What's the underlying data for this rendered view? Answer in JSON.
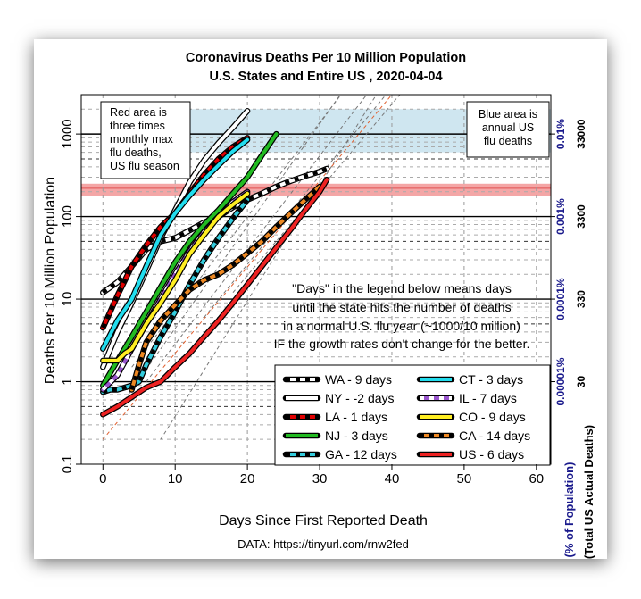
{
  "chart_data": {
    "type": "line",
    "title": "Coronavirus Deaths Per 10 Million Population",
    "subtitle": "U.S. States and Entire US , 2020-04-04",
    "xlabel": "Days Since First Reported Death",
    "ylabel": "Deaths Per 10 Million Population",
    "right_label_1": "(% of Population)",
    "right_label_2": "(Total US Actual Deaths)",
    "source": "DATA: https://tinyurl.com/rnw2fed",
    "y_scale": "log",
    "xlim": [
      -3,
      62
    ],
    "ylim": [
      0.1,
      3000
    ],
    "x_ticks": [
      0,
      10,
      20,
      30,
      40,
      50,
      60
    ],
    "x_tick_labels": [
      "0",
      "10",
      "20",
      "30",
      "40",
      "50",
      "60"
    ],
    "y_ticks": [
      0.1,
      1,
      10,
      100,
      1000
    ],
    "y_tick_labels": [
      "0.1",
      "1",
      "10",
      "100",
      "1000"
    ],
    "right_pct_labels": [
      {
        "y": 1000,
        "label": "0.01%"
      },
      {
        "y": 100,
        "label": "0.001%"
      },
      {
        "y": 10,
        "label": "0.0001%"
      },
      {
        "y": 1,
        "label": "0.00001%"
      }
    ],
    "right_actual_labels": [
      {
        "y": 1000,
        "label": "33000"
      },
      {
        "y": 100,
        "label": "3300"
      },
      {
        "y": 10,
        "label": "330"
      },
      {
        "y": 1,
        "label": "30"
      }
    ],
    "red_band": {
      "ymin": 180,
      "ymax": 250
    },
    "blue_band": {
      "ymin": 600,
      "ymax": 2000,
      "xmin": 10
    },
    "annotation_red": [
      "Red area is",
      "three times",
      "monthly max",
      "flu deaths,",
      "US flu season"
    ],
    "annotation_blue": [
      "Blue area is",
      "annual US",
      "flu deaths"
    ],
    "note": [
      "\"Days\" in the legend below means days",
      "until the state hits the number of deaths",
      "in a normal U.S. flu year (~1000/10 million)",
      "IF the growth rates don't change for the better."
    ],
    "series": [
      {
        "name": "WA - 9 days",
        "color": "#ffffff",
        "dash": "#000000",
        "x": [
          0,
          2,
          4,
          6,
          8,
          10,
          12,
          14,
          16,
          18,
          20,
          22,
          24,
          26,
          28,
          30,
          31
        ],
        "y": [
          12,
          16,
          25,
          40,
          50,
          55,
          68,
          85,
          100,
          130,
          160,
          190,
          230,
          270,
          310,
          350,
          380
        ]
      },
      {
        "name": "NY - -2 days",
        "color": "#ffffff",
        "dash": "",
        "x": [
          0,
          2,
          4,
          6,
          8,
          10,
          12,
          14,
          16,
          18,
          20
        ],
        "y": [
          1.5,
          4,
          9,
          22,
          55,
          120,
          260,
          480,
          780,
          1200,
          1900
        ]
      },
      {
        "name": "LA - 1 days",
        "color": "#e00000",
        "dash": "#000000",
        "x": [
          0,
          1,
          2,
          4,
          6,
          8,
          10,
          12,
          14,
          16,
          18,
          20
        ],
        "y": [
          4.5,
          7,
          11,
          25,
          45,
          75,
          110,
          190,
          320,
          500,
          700,
          900
        ]
      },
      {
        "name": "NJ - 3 days",
        "color": "#22bb22",
        "dash": "",
        "x": [
          0,
          2,
          4,
          6,
          8,
          10,
          12,
          14,
          16,
          18,
          20,
          22,
          24
        ],
        "y": [
          0.9,
          1.8,
          3.5,
          7,
          14,
          28,
          50,
          80,
          120,
          190,
          300,
          550,
          1000
        ]
      },
      {
        "name": "GA - 12 days",
        "color": "#33ccdd",
        "dash": "#000000",
        "x": [
          0,
          1,
          2,
          3,
          4,
          5,
          6,
          8,
          10,
          12,
          14,
          16,
          18,
          20
        ],
        "y": [
          0.75,
          0.8,
          0.8,
          0.85,
          0.9,
          1.0,
          1.6,
          3.5,
          7,
          15,
          30,
          55,
          95,
          160
        ]
      },
      {
        "name": "CT - 3 days",
        "color": "#22ddee",
        "dash": "",
        "x": [
          0,
          2,
          4,
          6,
          8,
          10,
          12,
          14,
          16,
          18,
          20
        ],
        "y": [
          2.5,
          5.5,
          10,
          25,
          60,
          110,
          180,
          280,
          420,
          620,
          850
        ]
      },
      {
        "name": "IL - 7 days",
        "color": "#9955cc",
        "dash": "#ffffff",
        "x": [
          0,
          2,
          4,
          6,
          8,
          10,
          12,
          14,
          16,
          18,
          20
        ],
        "y": [
          0.8,
          1.2,
          2.5,
          5,
          10,
          20,
          38,
          65,
          100,
          150,
          200
        ]
      },
      {
        "name": "CO - 9 days",
        "color": "#ffee22",
        "dash": "",
        "x": [
          0,
          1,
          2,
          3,
          4,
          6,
          8,
          10,
          12,
          14,
          16,
          18,
          20
        ],
        "y": [
          1.8,
          1.8,
          1.8,
          2.2,
          2.5,
          5,
          9,
          17,
          35,
          60,
          100,
          140,
          190
        ]
      },
      {
        "name": "CA - 14 days",
        "color": "#ee8822",
        "dash": "#000000",
        "x": [
          4,
          5,
          6,
          8,
          10,
          12,
          14,
          16,
          18,
          20,
          22,
          24,
          26,
          28,
          30
        ],
        "y": [
          0.8,
          1.6,
          3.0,
          5.5,
          8.5,
          13,
          17,
          20,
          26,
          36,
          50,
          75,
          110,
          160,
          230
        ]
      },
      {
        "name": "US - 6 days",
        "color": "#ee2222",
        "dash": "",
        "x": [
          0,
          2,
          4,
          6,
          8,
          10,
          12,
          14,
          16,
          18,
          20,
          22,
          24,
          26,
          28,
          30,
          31
        ],
        "y": [
          0.4,
          0.5,
          0.65,
          0.85,
          1.0,
          1.5,
          2.2,
          3.5,
          5.5,
          9,
          15,
          25,
          42,
          70,
          120,
          200,
          280
        ]
      }
    ],
    "legend_order": [
      0,
      5,
      1,
      6,
      2,
      7,
      3,
      8,
      4,
      9
    ]
  }
}
